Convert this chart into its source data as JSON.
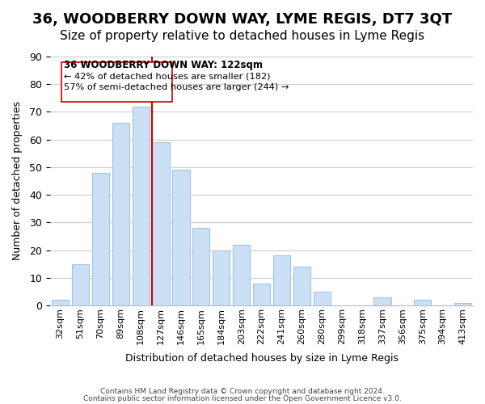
{
  "title": "36, WOODBERRY DOWN WAY, LYME REGIS, DT7 3QT",
  "subtitle": "Size of property relative to detached houses in Lyme Regis",
  "xlabel": "Distribution of detached houses by size in Lyme Regis",
  "ylabel": "Number of detached properties",
  "categories": [
    "32sqm",
    "51sqm",
    "70sqm",
    "89sqm",
    "108sqm",
    "127sqm",
    "146sqm",
    "165sqm",
    "184sqm",
    "203sqm",
    "222sqm",
    "241sqm",
    "260sqm",
    "280sqm",
    "299sqm",
    "318sqm",
    "337sqm",
    "356sqm",
    "375sqm",
    "394sqm",
    "413sqm"
  ],
  "values": [
    2,
    15,
    48,
    66,
    72,
    59,
    49,
    28,
    20,
    22,
    8,
    18,
    14,
    5,
    0,
    0,
    3,
    0,
    2,
    0,
    1
  ],
  "bar_color": "#cce0f5",
  "bar_edge_color": "#a0c4e8",
  "highlight_bar_index": 5,
  "highlight_line_color": "#cc0000",
  "ylim": [
    0,
    90
  ],
  "yticks": [
    0,
    10,
    20,
    30,
    40,
    50,
    60,
    70,
    80,
    90
  ],
  "annotation_text_line1": "36 WOODBERRY DOWN WAY: 122sqm",
  "annotation_text_line2": "← 42% of detached houses are smaller (182)",
  "annotation_text_line3": "57% of semi-detached houses are larger (244) →",
  "footer_line1": "Contains HM Land Registry data © Crown copyright and database right 2024.",
  "footer_line2": "Contains public sector information licensed under the Open Government Licence v3.0.",
  "background_color": "#ffffff",
  "grid_color": "#cccccc",
  "title_fontsize": 13,
  "subtitle_fontsize": 11
}
